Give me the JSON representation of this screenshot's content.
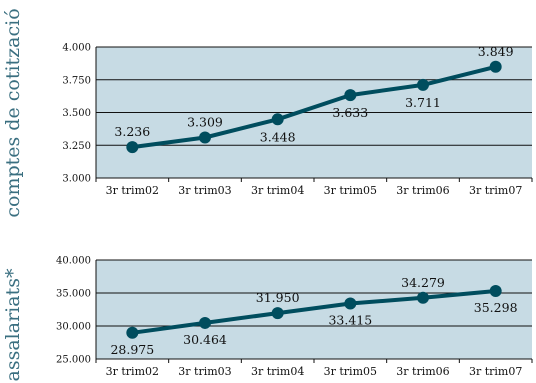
{
  "colors": {
    "plot_bg": "#c7dbe4",
    "line": "#004d5e",
    "side_label": "#3a6f80",
    "grid": "#111111"
  },
  "chart_data": [
    {
      "type": "line",
      "side_label": "comptes de cotització",
      "categories": [
        "3r trim02",
        "3r trim03",
        "3r trim04",
        "3r trim05",
        "3r trim06",
        "3r trim07"
      ],
      "values": [
        3236,
        3309,
        3448,
        3633,
        3711,
        3849
      ],
      "value_labels": [
        "3.236",
        "3.309",
        "3.448",
        "3.633",
        "3.711",
        "3.849"
      ],
      "y_ticks": [
        "3.000",
        "3.250",
        "3.500",
        "3.750",
        "4.000"
      ],
      "ylim": [
        3000,
        4000
      ],
      "grid": true
    },
    {
      "type": "line",
      "side_label": "assalariats*",
      "categories": [
        "3r trim02",
        "3r trim03",
        "3r trim04",
        "3r trim05",
        "3r trim06",
        "3r trim07"
      ],
      "values": [
        28975,
        30464,
        31950,
        33415,
        34279,
        35298
      ],
      "value_labels": [
        "28.975",
        "30.464",
        "31.950",
        "33.415",
        "34.279",
        "35.298"
      ],
      "y_ticks": [
        "25.000",
        "30.000",
        "35.000",
        "40.000"
      ],
      "ylim": [
        25000,
        40000
      ],
      "grid": true
    }
  ]
}
